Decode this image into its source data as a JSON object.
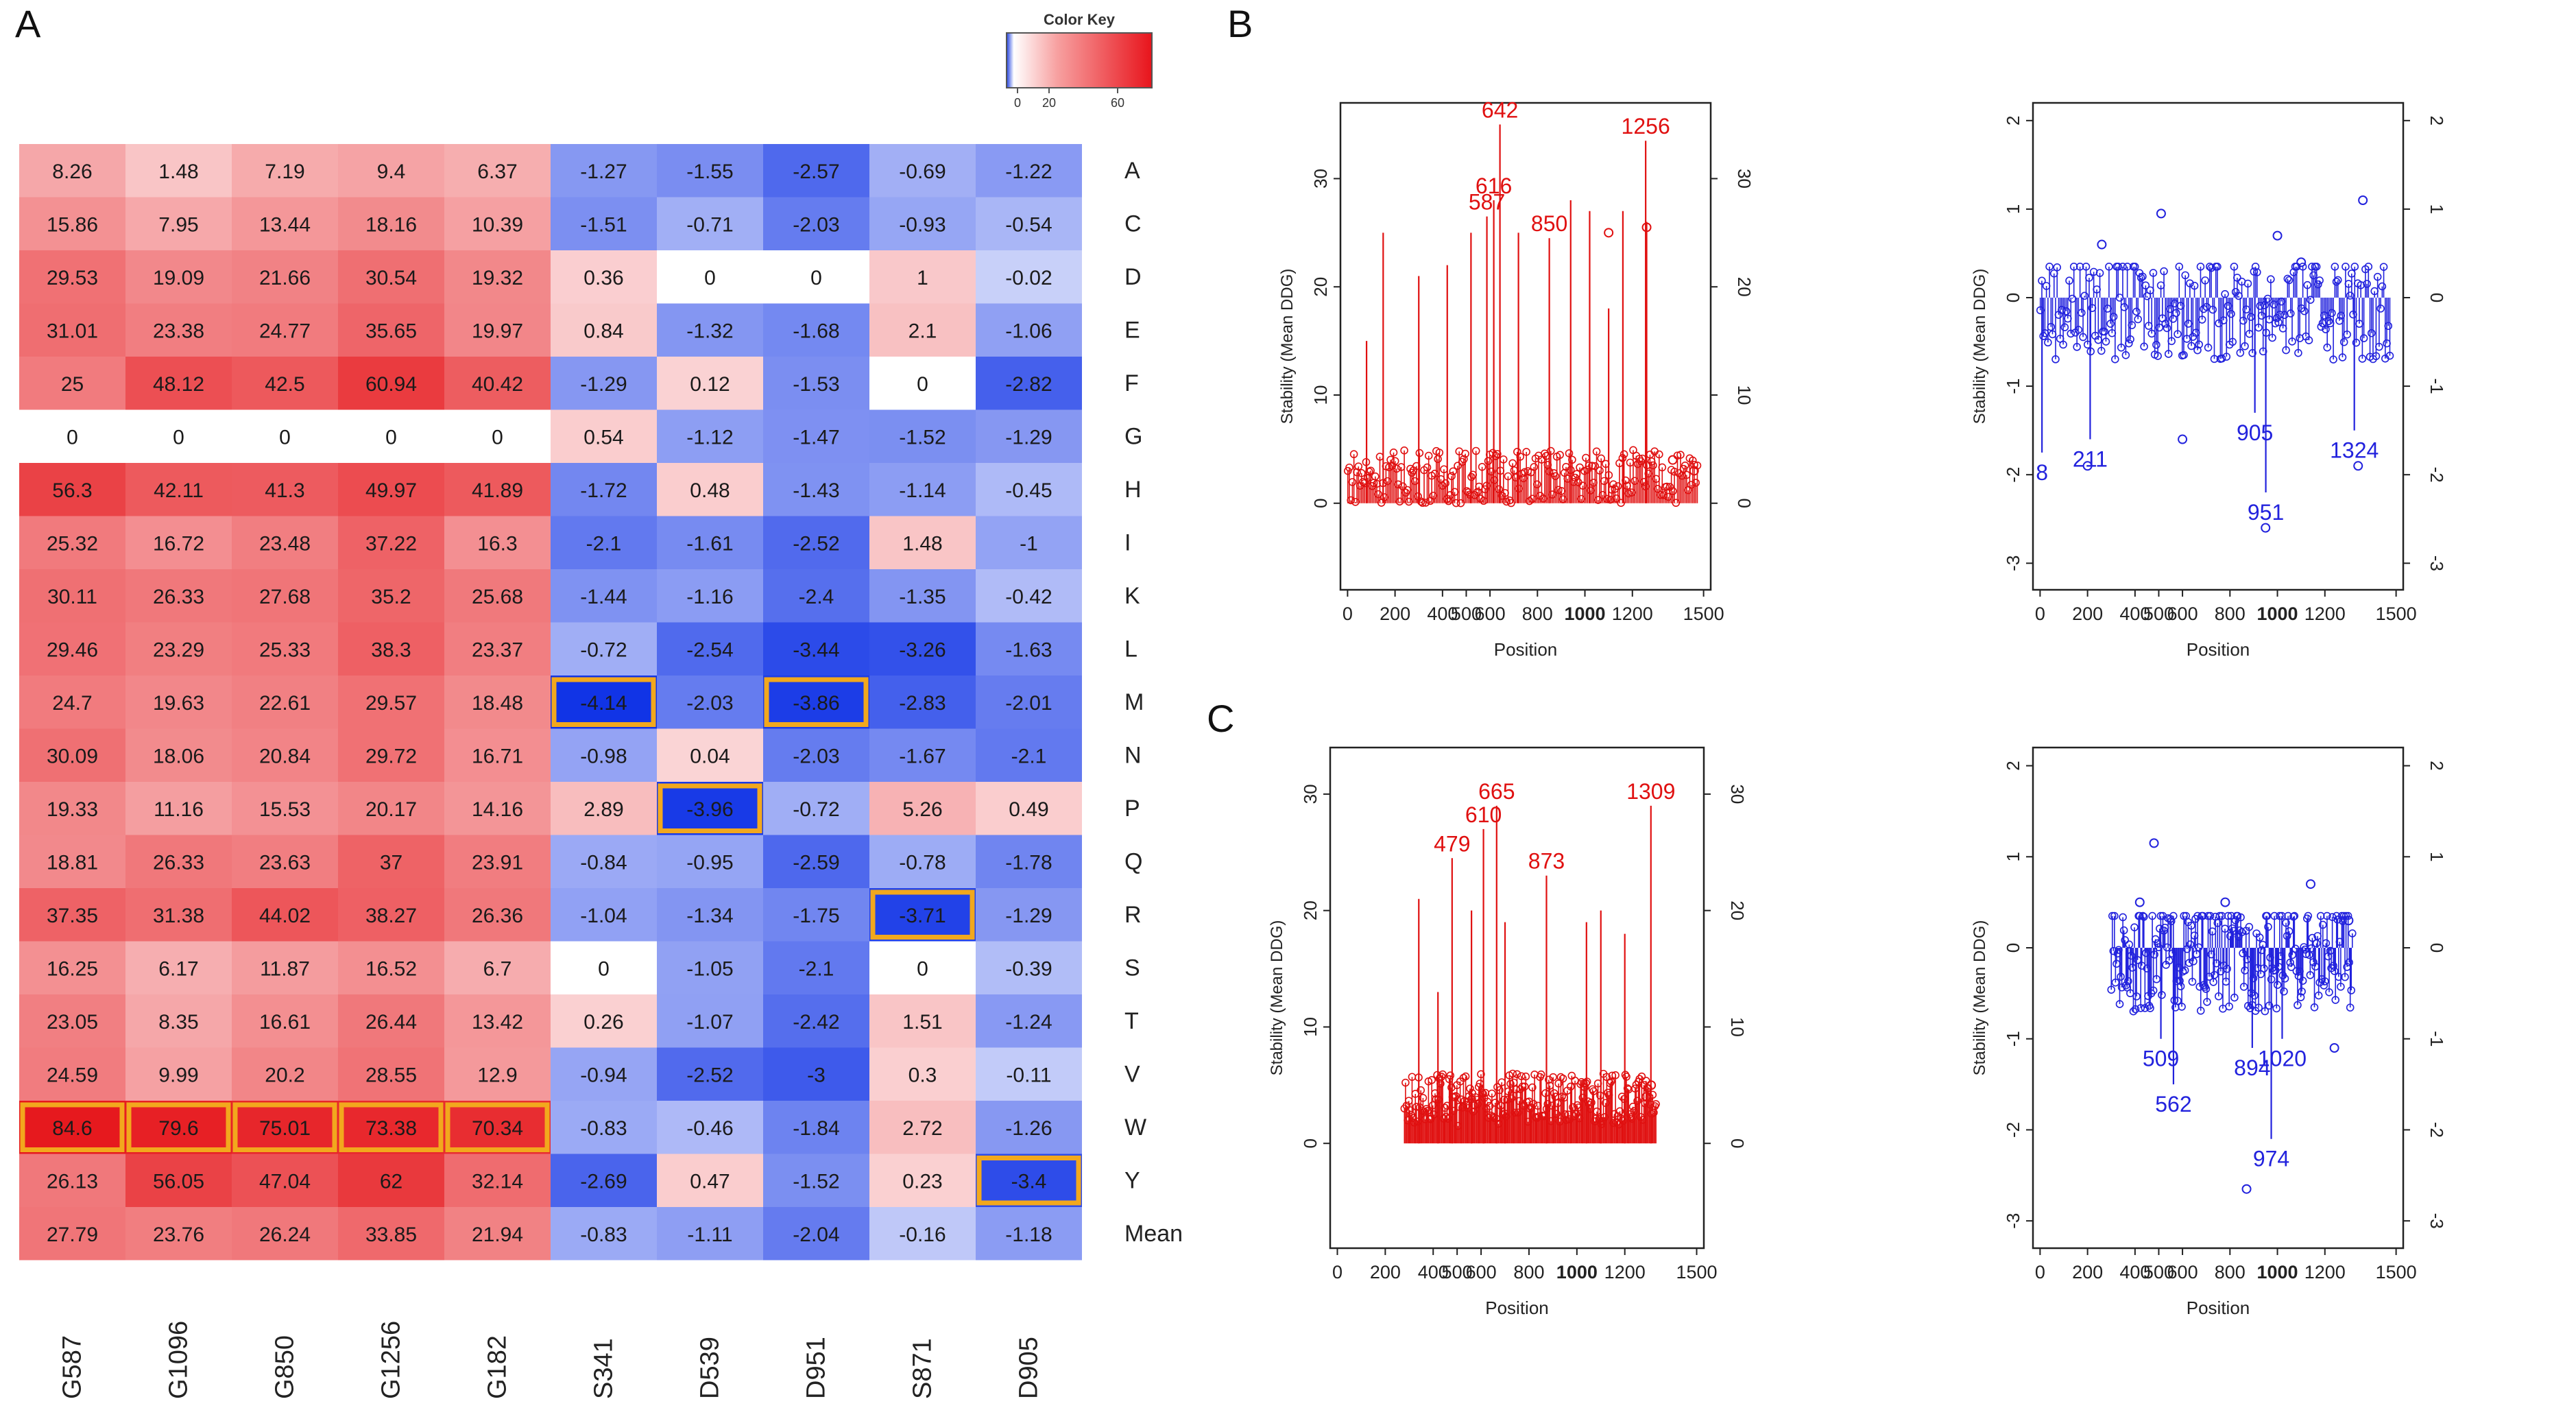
{
  "panels": {
    "a": "A",
    "b": "B",
    "c": "C"
  },
  "chart_data": [
    {
      "type": "heatmap",
      "panel": "A",
      "title": "",
      "color_key": {
        "title": "Color Key",
        "ticks": [
          "0",
          "20",
          "60"
        ],
        "range": [
          -4.14,
          84.6
        ]
      },
      "columns": [
        "G587",
        "G1096",
        "G850",
        "G1256",
        "G182",
        "S341",
        "D539",
        "D951",
        "S871",
        "D905"
      ],
      "rows": [
        "A",
        "C",
        "D",
        "E",
        "F",
        "G",
        "H",
        "I",
        "K",
        "L",
        "M",
        "N",
        "P",
        "Q",
        "R",
        "S",
        "T",
        "V",
        "W",
        "Y",
        "Mean"
      ],
      "values": [
        [
          8.26,
          1.48,
          7.19,
          9.4,
          6.37,
          -1.27,
          -1.55,
          -2.57,
          -0.69,
          -1.22
        ],
        [
          15.86,
          7.95,
          13.44,
          18.16,
          10.39,
          -1.51,
          -0.71,
          -2.03,
          -0.93,
          -0.54
        ],
        [
          29.53,
          19.09,
          21.66,
          30.54,
          19.32,
          0.36,
          0,
          0,
          1,
          -0.02
        ],
        [
          31.01,
          23.38,
          24.77,
          35.65,
          19.97,
          0.84,
          -1.32,
          -1.68,
          2.1,
          -1.06
        ],
        [
          25,
          48.12,
          42.5,
          60.94,
          40.42,
          -1.29,
          0.12,
          -1.53,
          0,
          -2.82
        ],
        [
          0,
          0,
          0,
          0,
          0,
          0.54,
          -1.12,
          -1.47,
          -1.52,
          -1.29
        ],
        [
          56.3,
          42.11,
          41.3,
          49.97,
          41.89,
          -1.72,
          0.48,
          -1.43,
          -1.14,
          -0.45
        ],
        [
          25.32,
          16.72,
          23.48,
          37.22,
          16.3,
          -2.1,
          -1.61,
          -2.52,
          1.48,
          -1
        ],
        [
          30.11,
          26.33,
          27.68,
          35.2,
          25.68,
          -1.44,
          -1.16,
          -2.4,
          -1.35,
          -0.42
        ],
        [
          29.46,
          23.29,
          25.33,
          38.3,
          23.37,
          -0.72,
          -2.54,
          -3.44,
          -3.26,
          -1.63
        ],
        [
          24.7,
          19.63,
          22.61,
          29.57,
          18.48,
          -4.14,
          -2.03,
          -3.86,
          -2.83,
          -2.01
        ],
        [
          30.09,
          18.06,
          20.84,
          29.72,
          16.71,
          -0.98,
          0.04,
          -2.03,
          -1.67,
          -2.1
        ],
        [
          19.33,
          11.16,
          15.53,
          20.17,
          14.16,
          2.89,
          -3.96,
          -0.72,
          5.26,
          0.49
        ],
        [
          18.81,
          26.33,
          23.63,
          37,
          23.91,
          -0.84,
          -0.95,
          -2.59,
          -0.78,
          -1.78
        ],
        [
          37.35,
          31.38,
          44.02,
          38.27,
          26.36,
          -1.04,
          -1.34,
          -1.75,
          -3.71,
          -1.29
        ],
        [
          16.25,
          6.17,
          11.87,
          16.52,
          6.7,
          0,
          -1.05,
          -2.1,
          0,
          -0.39
        ],
        [
          23.05,
          8.35,
          16.61,
          26.44,
          13.42,
          0.26,
          -1.07,
          -2.42,
          1.51,
          -1.24
        ],
        [
          24.59,
          9.99,
          20.2,
          28.55,
          12.9,
          -0.94,
          -2.52,
          -3,
          0.3,
          -0.11
        ],
        [
          84.6,
          79.6,
          75.01,
          73.38,
          70.34,
          -0.83,
          -0.46,
          -1.84,
          2.72,
          -1.26
        ],
        [
          26.13,
          56.05,
          47.04,
          62,
          32.14,
          -2.69,
          0.47,
          -1.52,
          0.23,
          -3.4
        ],
        [
          27.79,
          23.76,
          26.24,
          33.85,
          21.94,
          -0.83,
          -1.11,
          -2.04,
          -0.16,
          -1.18
        ]
      ],
      "highlighted_cells": [
        [
          10,
          5
        ],
        [
          10,
          7
        ],
        [
          12,
          6
        ],
        [
          14,
          8
        ],
        [
          18,
          0
        ],
        [
          18,
          1
        ],
        [
          18,
          2
        ],
        [
          18,
          3
        ],
        [
          18,
          4
        ],
        [
          19,
          9
        ]
      ],
      "colors": {
        "positive": "#ee1c1c",
        "negative": "#0a2ce8",
        "zero": "#ffffff",
        "highlight": "#f2a81d"
      }
    },
    {
      "type": "line",
      "panel": "B-left",
      "xlabel": "Position",
      "ylabel": "Stability (Mean DDG)",
      "xlim": [
        -30,
        1530
      ],
      "ylim": [
        -8,
        37
      ],
      "xticks": [
        "0",
        "200",
        "400",
        "500",
        "600",
        "800",
        "1000",
        "1200",
        "1500"
      ],
      "yticks": [
        "0",
        "10",
        "20",
        "30"
      ],
      "right_yticks": [
        "0",
        "10",
        "20",
        "30"
      ],
      "color": "#e01010",
      "range": [
        1,
        1480
      ],
      "noise_amp": 5,
      "noise_base": 0,
      "peaks": [
        {
          "x": 587,
          "y": 26.5,
          "label": "587"
        },
        {
          "x": 616,
          "y": 28,
          "label": "616"
        },
        {
          "x": 642,
          "y": 35,
          "label": "642"
        },
        {
          "x": 850,
          "y": 24.5,
          "label": "850"
        },
        {
          "x": 1256,
          "y": 33.5,
          "label": "1256"
        },
        {
          "x": 150,
          "y": 25
        },
        {
          "x": 520,
          "y": 25
        },
        {
          "x": 720,
          "y": 25
        },
        {
          "x": 940,
          "y": 28
        },
        {
          "x": 1020,
          "y": 27
        },
        {
          "x": 1160,
          "y": 27
        },
        {
          "x": 1260,
          "y": 26
        },
        {
          "x": 300,
          "y": 21
        },
        {
          "x": 420,
          "y": 22
        },
        {
          "x": 80,
          "y": 15
        },
        {
          "x": 1100,
          "y": 18
        }
      ],
      "points": [
        {
          "x": 1100,
          "y": 25
        },
        {
          "x": 1260,
          "y": 25.5
        },
        {
          "x": 1370,
          "y": 4
        },
        {
          "x": 1460,
          "y": 3
        }
      ]
    },
    {
      "type": "line",
      "panel": "B-right",
      "xlabel": "Position",
      "ylabel": "Stability (Mean DDG)",
      "xlim": [
        -30,
        1530
      ],
      "ylim": [
        -3.3,
        2.2
      ],
      "xticks": [
        "0",
        "200",
        "400",
        "500",
        "600",
        "800",
        "1000",
        "1200",
        "1500"
      ],
      "yticks": [
        "-3",
        "-2",
        "-1",
        "0",
        "1",
        "2"
      ],
      "right_yticks": [
        "-3",
        "-2",
        "-1",
        "0",
        "1",
        "2"
      ],
      "color": "#2222dd",
      "range": [
        1,
        1480
      ],
      "noise_amp": 0.6,
      "noise_base": 0,
      "peaks": [
        {
          "x": 8,
          "y": -1.75,
          "label": "8"
        },
        {
          "x": 211,
          "y": -1.6,
          "label": "211"
        },
        {
          "x": 905,
          "y": -1.3,
          "label": "905"
        },
        {
          "x": 951,
          "y": -2.2,
          "label": "951"
        },
        {
          "x": 1324,
          "y": -1.5,
          "label": "1324"
        }
      ],
      "points": [
        {
          "x": 950,
          "y": -2.6
        },
        {
          "x": 1360,
          "y": 1.1
        },
        {
          "x": 510,
          "y": 0.95
        },
        {
          "x": 260,
          "y": 0.6
        },
        {
          "x": 1000,
          "y": 0.7
        },
        {
          "x": 1340,
          "y": -1.9
        },
        {
          "x": 200,
          "y": -1.9
        },
        {
          "x": 1100,
          "y": 0.4
        },
        {
          "x": 600,
          "y": -1.6
        }
      ]
    },
    {
      "type": "line",
      "panel": "C-left",
      "xlabel": "Position",
      "ylabel": "Stability (Mean DDG)",
      "xlim": [
        -30,
        1530
      ],
      "ylim": [
        -9,
        34
      ],
      "xticks": [
        "0",
        "200",
        "400",
        "500",
        "600",
        "800",
        "1000",
        "1200",
        "1500"
      ],
      "yticks": [
        "0",
        "10",
        "20",
        "30"
      ],
      "right_yticks": [
        "0",
        "10",
        "20",
        "30"
      ],
      "color": "#e01010",
      "range": [
        280,
        1330
      ],
      "noise_amp": 4.5,
      "noise_base": 1.5,
      "peaks": [
        {
          "x": 479,
          "y": 24.5,
          "label": "479"
        },
        {
          "x": 610,
          "y": 27,
          "label": "610"
        },
        {
          "x": 665,
          "y": 29,
          "label": "665"
        },
        {
          "x": 873,
          "y": 23,
          "label": "873"
        },
        {
          "x": 1309,
          "y": 29,
          "label": "1309"
        },
        {
          "x": 340,
          "y": 21
        },
        {
          "x": 560,
          "y": 20
        },
        {
          "x": 700,
          "y": 19
        },
        {
          "x": 1040,
          "y": 19
        },
        {
          "x": 1100,
          "y": 20
        },
        {
          "x": 1200,
          "y": 18
        },
        {
          "x": 420,
          "y": 13
        }
      ],
      "points": [
        {
          "x": 1310,
          "y": 5
        },
        {
          "x": 1290,
          "y": 4
        }
      ]
    },
    {
      "type": "line",
      "panel": "C-right",
      "xlabel": "Position",
      "ylabel": "Stability (Mean DDG)",
      "xlim": [
        -30,
        1530
      ],
      "ylim": [
        -3.3,
        2.2
      ],
      "xticks": [
        "0",
        "200",
        "400",
        "500",
        "600",
        "800",
        "1000",
        "1200",
        "1500"
      ],
      "yticks": [
        "-3",
        "-2",
        "-1",
        "0",
        "1",
        "2"
      ],
      "right_yticks": [
        "-3",
        "-2",
        "-1",
        "0",
        "1",
        "2"
      ],
      "color": "#2222dd",
      "range": [
        300,
        1320
      ],
      "noise_amp": 0.6,
      "noise_base": 0,
      "peaks": [
        {
          "x": 509,
          "y": -1.0,
          "label": "509"
        },
        {
          "x": 562,
          "y": -1.5,
          "label": "562"
        },
        {
          "x": 894,
          "y": -1.1,
          "label": "894"
        },
        {
          "x": 974,
          "y": -2.1,
          "label": "974"
        },
        {
          "x": 1020,
          "y": -1.0,
          "label": "1020"
        }
      ],
      "points": [
        {
          "x": 480,
          "y": 1.15
        },
        {
          "x": 870,
          "y": -2.65
        },
        {
          "x": 780,
          "y": 0.5
        },
        {
          "x": 1140,
          "y": 0.7
        },
        {
          "x": 420,
          "y": 0.5
        },
        {
          "x": 1300,
          "y": 0.3
        },
        {
          "x": 1240,
          "y": -1.1
        }
      ]
    }
  ]
}
